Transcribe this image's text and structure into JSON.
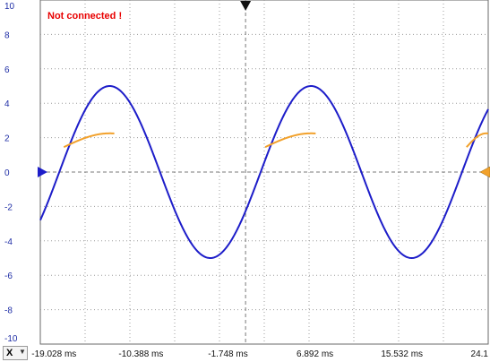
{
  "status_text": "Not connected !",
  "x_selector": {
    "label": "X",
    "arrow_icon": "chevron-down-icon"
  },
  "colors": {
    "background": "#ffffff",
    "grid": "#9c9c9c",
    "zero_line": "#7a7a7a",
    "channel_a": "#1d1dc9",
    "channel_b": "#f2a12b",
    "status": "#e80000",
    "tick_text": "#1a1ab0",
    "y_tick_text": "#1f2ea6",
    "trigger_marker": "#111111"
  },
  "chart_data": {
    "type": "line",
    "title": "",
    "xlabel": "",
    "ylabel": "",
    "xlim": [
      -20.388,
      24.1
    ],
    "ylim": [
      -10,
      10
    ],
    "grid": true,
    "legend": "none",
    "x_tick_labels": [
      "-19.028 ms",
      "-10.388 ms",
      "-1.748 ms",
      "6.892 ms",
      "15.532 ms",
      "24.1"
    ],
    "x_tick_values": [
      -19.028,
      -10.388,
      -1.748,
      6.892,
      15.532,
      24.1
    ],
    "y_tick_labels": [
      "10",
      "8",
      "6",
      "4",
      "2",
      "0",
      "-2",
      "-4",
      "-6",
      "-8",
      "-10"
    ],
    "y_tick_values": [
      10,
      8,
      6,
      4,
      2,
      0,
      -2,
      -4,
      -6,
      -8,
      -10
    ],
    "series": [
      {
        "color": "#1d1dc9",
        "waveform": "sine",
        "amplitude": 5,
        "offset": 0,
        "period_ms": 20,
        "zero_crossing_rising_ms": -18.5
      },
      {
        "color": "#f2a12b",
        "waveform": "clipped-sine-segments",
        "segments": [
          {
            "x": [
              -18.05,
              -13.04
            ],
            "y": [
              1.45,
              2.25
            ]
          },
          {
            "x": [
              1.95,
              6.96
            ],
            "y": [
              1.45,
              2.25
            ]
          },
          {
            "x": [
              21.95,
              24.1
            ],
            "y": [
              1.45,
              2.25
            ]
          }
        ]
      }
    ],
    "markers": {
      "trigger_time_ms": 0,
      "channel_a_zero_level": 0,
      "channel_b_zero_level": 0
    }
  }
}
